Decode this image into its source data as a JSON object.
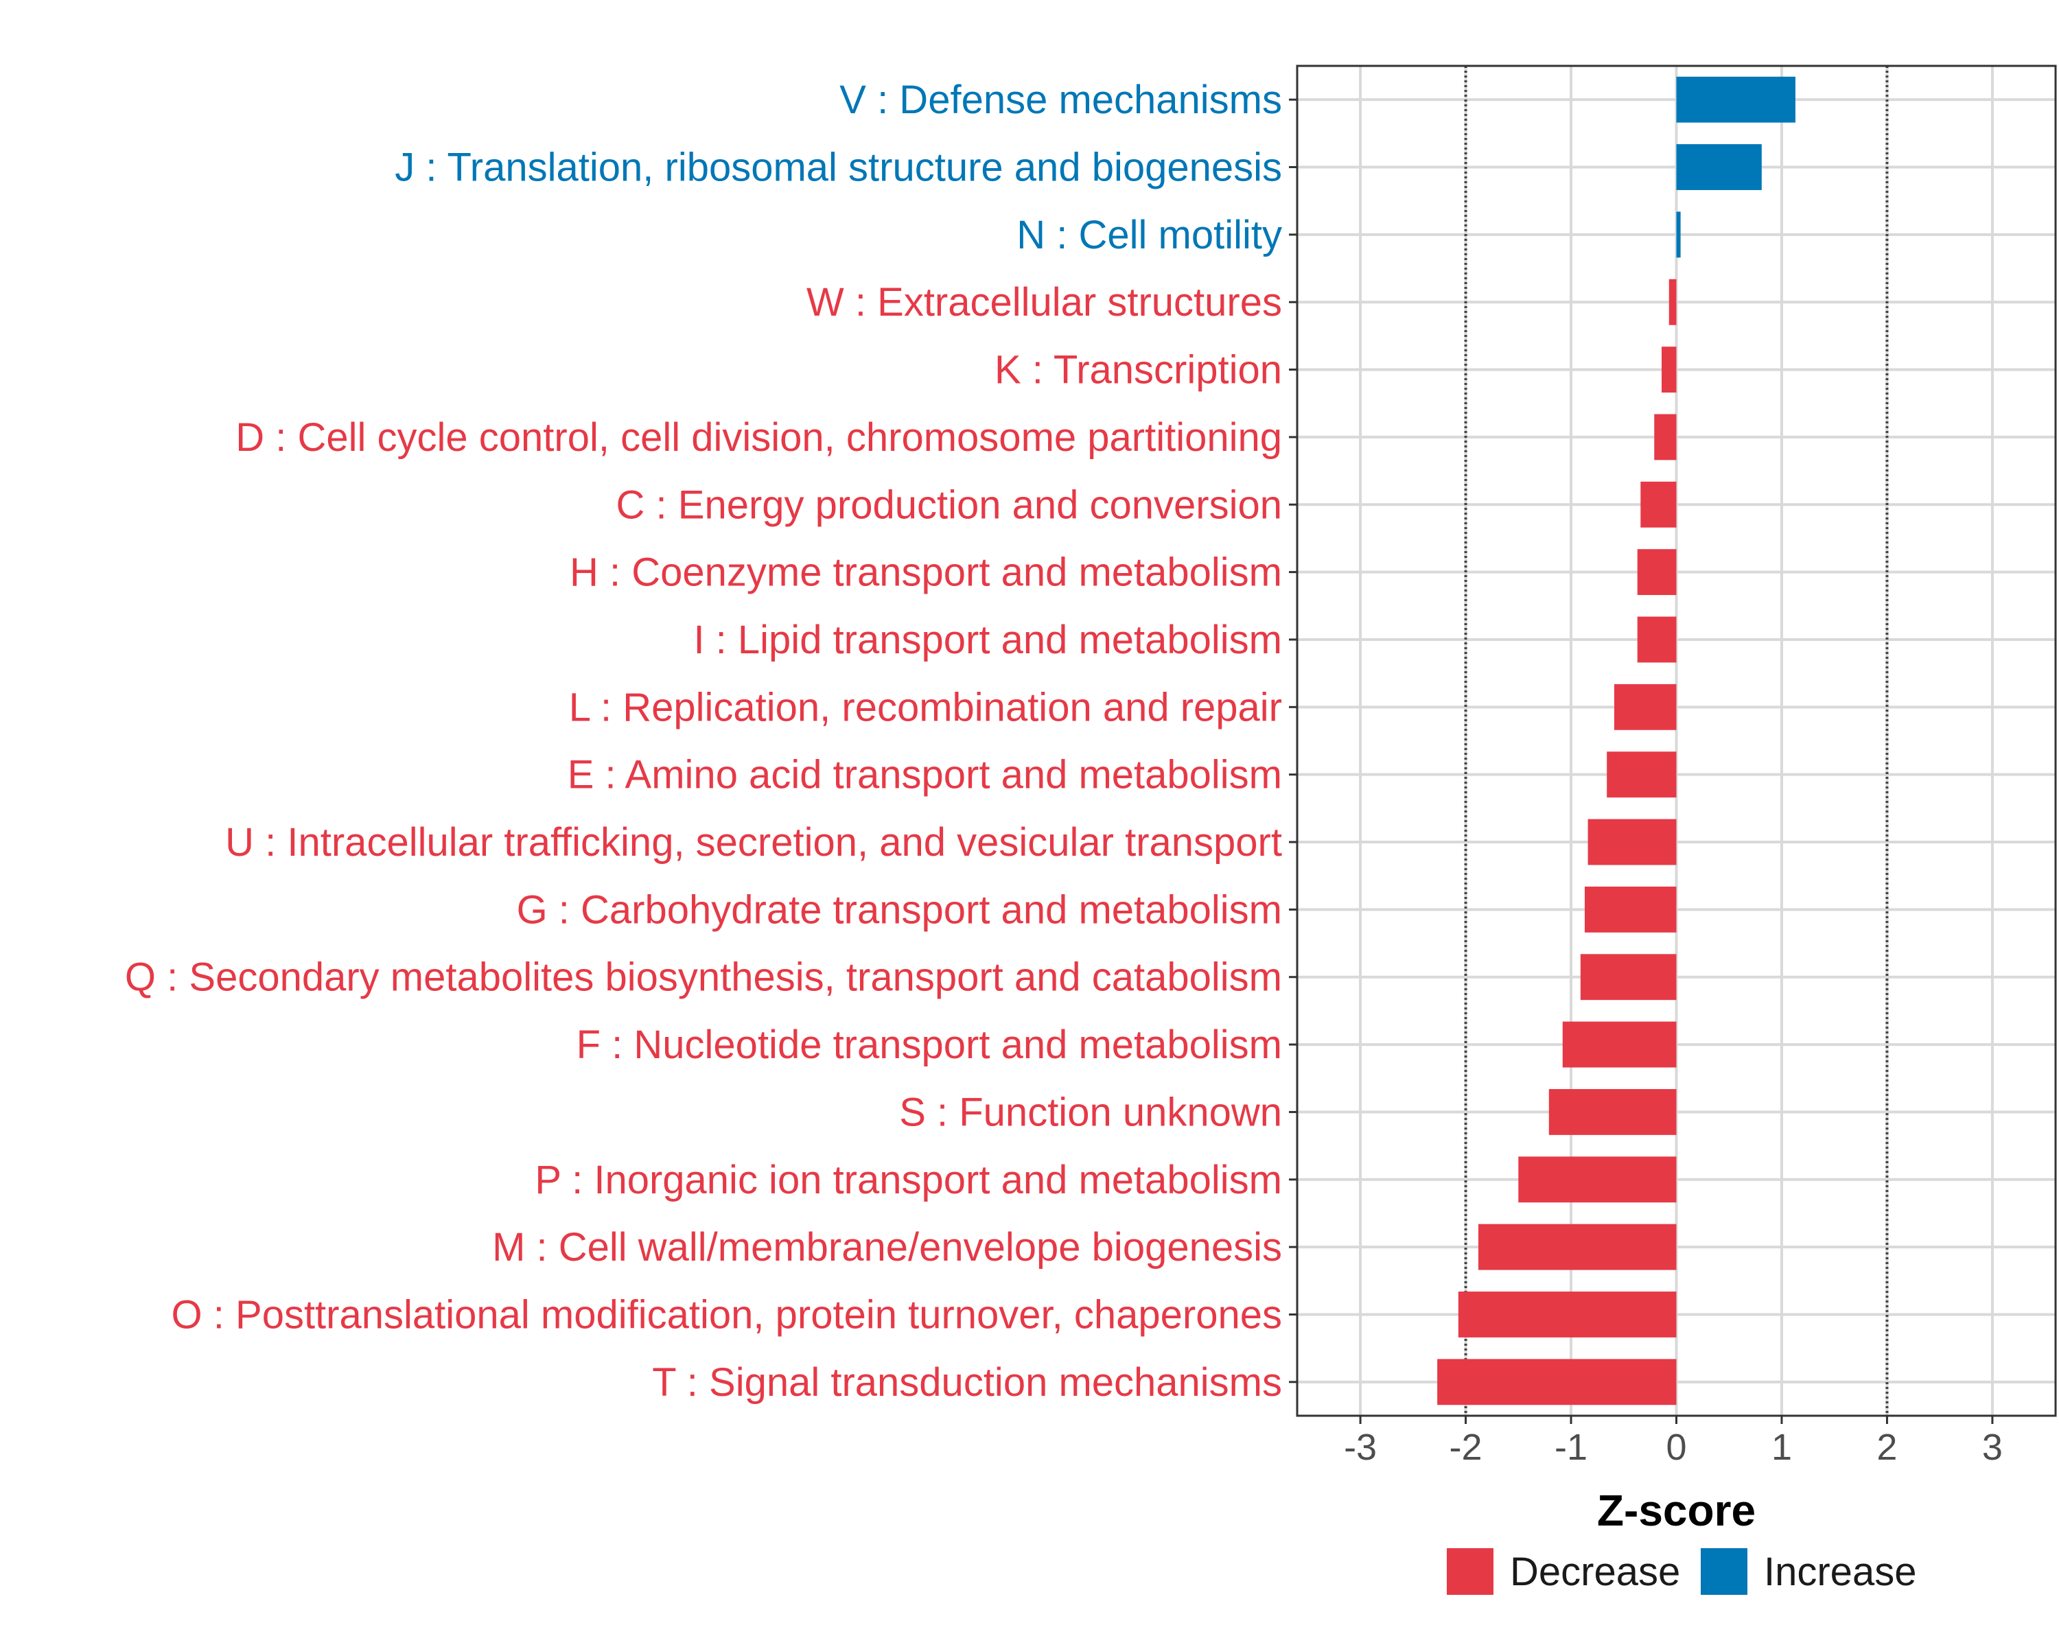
{
  "chart_data": {
    "type": "bar",
    "orientation": "horizontal",
    "xlabel": "Z-score",
    "xlim": [
      -3.6,
      3.6
    ],
    "xticks": [
      -3,
      -2,
      -1,
      0,
      1,
      2,
      3
    ],
    "xtick_labels": [
      "-3",
      "-2",
      "-1",
      "0",
      "1",
      "2",
      "3"
    ],
    "reference_lines": [
      -2,
      2
    ],
    "grid": true,
    "colors": {
      "Decrease": "#e63946",
      "Increase": "#0077b6"
    },
    "legend": {
      "placement": "bottom-center",
      "entries": [
        {
          "label": "Decrease",
          "color": "#e63946"
        },
        {
          "label": "Increase",
          "color": "#0077b6"
        }
      ]
    },
    "categories": [
      {
        "label": "V : Defense mechanisms",
        "value": 1.13,
        "group": "Increase"
      },
      {
        "label": "J : Translation, ribosomal structure and biogenesis",
        "value": 0.81,
        "group": "Increase"
      },
      {
        "label": "N : Cell motility",
        "value": 0.04,
        "group": "Increase"
      },
      {
        "label": "W : Extracellular structures",
        "value": -0.07,
        "group": "Decrease"
      },
      {
        "label": "K : Transcription",
        "value": -0.14,
        "group": "Decrease"
      },
      {
        "label": "D : Cell cycle control, cell division, chromosome partitioning",
        "value": -0.21,
        "group": "Decrease"
      },
      {
        "label": "C : Energy production and conversion",
        "value": -0.34,
        "group": "Decrease"
      },
      {
        "label": "H : Coenzyme transport and metabolism",
        "value": -0.37,
        "group": "Decrease"
      },
      {
        "label": "I : Lipid transport and metabolism",
        "value": -0.37,
        "group": "Decrease"
      },
      {
        "label": "L : Replication, recombination and repair",
        "value": -0.59,
        "group": "Decrease"
      },
      {
        "label": "E : Amino acid transport and metabolism",
        "value": -0.66,
        "group": "Decrease"
      },
      {
        "label": "U : Intracellular trafficking, secretion, and vesicular transport",
        "value": -0.84,
        "group": "Decrease"
      },
      {
        "label": "G : Carbohydrate transport and metabolism",
        "value": -0.87,
        "group": "Decrease"
      },
      {
        "label": "Q : Secondary metabolites biosynthesis, transport and catabolism",
        "value": -0.91,
        "group": "Decrease"
      },
      {
        "label": "F : Nucleotide transport and metabolism",
        "value": -1.08,
        "group": "Decrease"
      },
      {
        "label": "S : Function unknown",
        "value": -1.21,
        "group": "Decrease"
      },
      {
        "label": "P : Inorganic ion transport and metabolism",
        "value": -1.5,
        "group": "Decrease"
      },
      {
        "label": "M : Cell wall/membrane/envelope biogenesis",
        "value": -1.88,
        "group": "Decrease"
      },
      {
        "label": "O : Posttranslational modification, protein turnover, chaperones",
        "value": -2.07,
        "group": "Decrease"
      },
      {
        "label": "T : Signal transduction mechanisms",
        "value": -2.27,
        "group": "Decrease"
      }
    ]
  }
}
